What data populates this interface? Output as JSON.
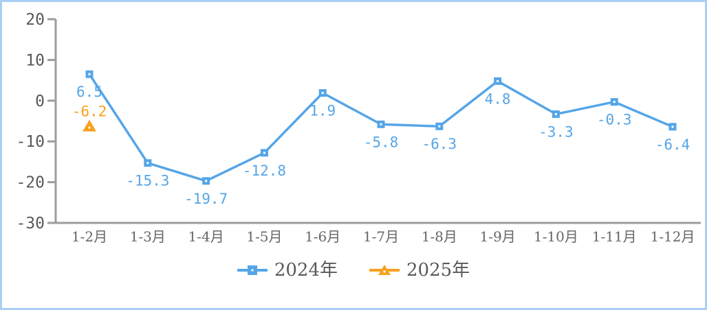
{
  "chart_data": {
    "type": "line",
    "categories": [
      "1-2月",
      "1-3月",
      "1-4月",
      "1-5月",
      "1-6月",
      "1-7月",
      "1-8月",
      "1-9月",
      "1-10月",
      "1-11月",
      "1-12月"
    ],
    "series": [
      {
        "name": "2024年",
        "marker": "square",
        "color": "#55a5e8",
        "label_position": "below",
        "values": [
          6.5,
          -15.3,
          -19.7,
          -12.8,
          1.9,
          -5.8,
          -6.3,
          4.8,
          -3.3,
          -0.3,
          -6.4
        ]
      },
      {
        "name": "2025年",
        "marker": "triangle",
        "color": "#f9a01b",
        "label_position": "above",
        "values": [
          -6.2,
          null,
          null,
          null,
          null,
          null,
          null,
          null,
          null,
          null,
          null
        ]
      }
    ],
    "title": "",
    "xlabel": "",
    "ylabel": "",
    "ylim": [
      -30,
      20
    ],
    "yticks": [
      20,
      10,
      0,
      -10,
      -20,
      -30
    ],
    "grid": false,
    "legend_position": "bottom"
  },
  "colors": {
    "axis_line": "#9c9c9c",
    "ytick_label": "#595959",
    "xtick_label": "#666666",
    "legend_text": "#595959",
    "series_2024": "#55a5e8",
    "series_2025": "#f9a01b",
    "frame_border": "#a9cff3",
    "background": "#ffffff"
  }
}
